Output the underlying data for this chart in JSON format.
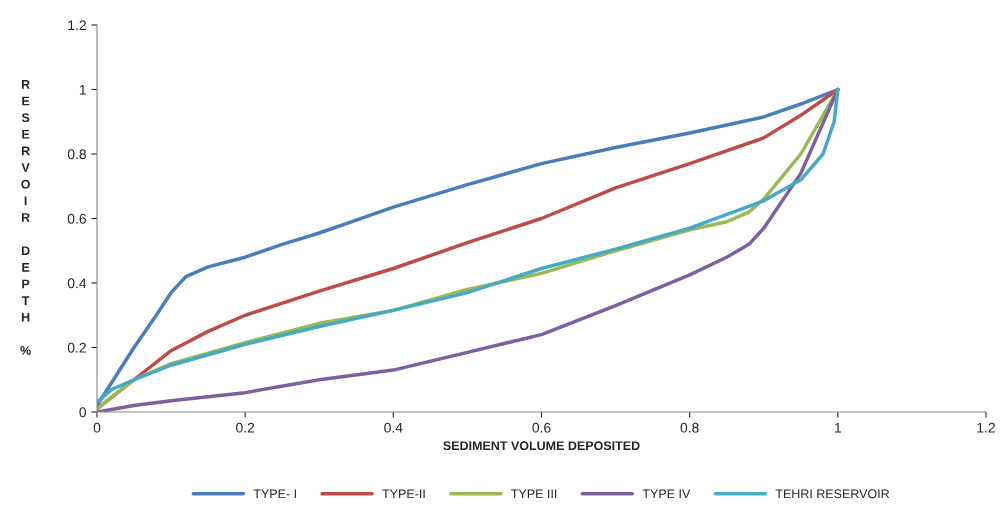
{
  "chart_data": {
    "type": "line",
    "xlabel": "SEDIMENT VOLUME DEPOSITED",
    "ylabel": "RESERVOIR DEPTH %",
    "xlim": [
      0,
      1.2
    ],
    "ylim": [
      0,
      1.2
    ],
    "xticks": [
      0,
      0.2,
      0.4,
      0.6,
      0.8,
      1,
      1.2
    ],
    "yticks": [
      0,
      0.2,
      0.4,
      0.6,
      0.8,
      1,
      1.2
    ],
    "grid": false,
    "legend": "bottom",
    "marker": "none",
    "line_style": "solid",
    "series": [
      {
        "name": "TYPE- I",
        "color": "#4a7ebb",
        "x": [
          0,
          0.05,
          0.08,
          0.1,
          0.12,
          0.15,
          0.2,
          0.25,
          0.3,
          0.35,
          0.4,
          0.5,
          0.6,
          0.7,
          0.8,
          0.9,
          0.95,
          1
        ],
        "values": [
          0.02,
          0.2,
          0.3,
          0.37,
          0.42,
          0.45,
          0.48,
          0.52,
          0.555,
          0.595,
          0.635,
          0.705,
          0.77,
          0.82,
          0.865,
          0.915,
          0.955,
          1
        ]
      },
      {
        "name": "TYPE-II",
        "color": "#be4b48",
        "x": [
          0,
          0.05,
          0.1,
          0.15,
          0.2,
          0.3,
          0.4,
          0.5,
          0.6,
          0.7,
          0.8,
          0.9,
          0.95,
          1
        ],
        "values": [
          0.01,
          0.1,
          0.19,
          0.25,
          0.3,
          0.375,
          0.445,
          0.525,
          0.6,
          0.695,
          0.77,
          0.85,
          0.92,
          1
        ]
      },
      {
        "name": "TYPE III",
        "color": "#98b954",
        "x": [
          0,
          0.05,
          0.1,
          0.2,
          0.3,
          0.4,
          0.5,
          0.6,
          0.7,
          0.8,
          0.85,
          0.88,
          0.9,
          0.95,
          1
        ],
        "values": [
          0.01,
          0.1,
          0.15,
          0.215,
          0.275,
          0.315,
          0.38,
          0.43,
          0.5,
          0.565,
          0.59,
          0.62,
          0.66,
          0.8,
          1
        ]
      },
      {
        "name": "TYPE IV",
        "color": "#7d60a0",
        "x": [
          0,
          0.05,
          0.1,
          0.2,
          0.3,
          0.4,
          0.5,
          0.6,
          0.7,
          0.8,
          0.85,
          0.88,
          0.9,
          0.95,
          1
        ],
        "values": [
          0,
          0.02,
          0.035,
          0.06,
          0.1,
          0.13,
          0.185,
          0.24,
          0.33,
          0.425,
          0.48,
          0.52,
          0.57,
          0.74,
          1
        ]
      },
      {
        "name": "TEHRI RESERVOIR",
        "color": "#46aac5",
        "x": [
          0,
          0.02,
          0.05,
          0.1,
          0.2,
          0.3,
          0.4,
          0.5,
          0.6,
          0.7,
          0.8,
          0.9,
          0.95,
          0.98,
          0.995,
          1
        ],
        "values": [
          0.03,
          0.07,
          0.1,
          0.145,
          0.21,
          0.265,
          0.315,
          0.37,
          0.445,
          0.505,
          0.57,
          0.655,
          0.72,
          0.8,
          0.9,
          1
        ]
      }
    ]
  }
}
